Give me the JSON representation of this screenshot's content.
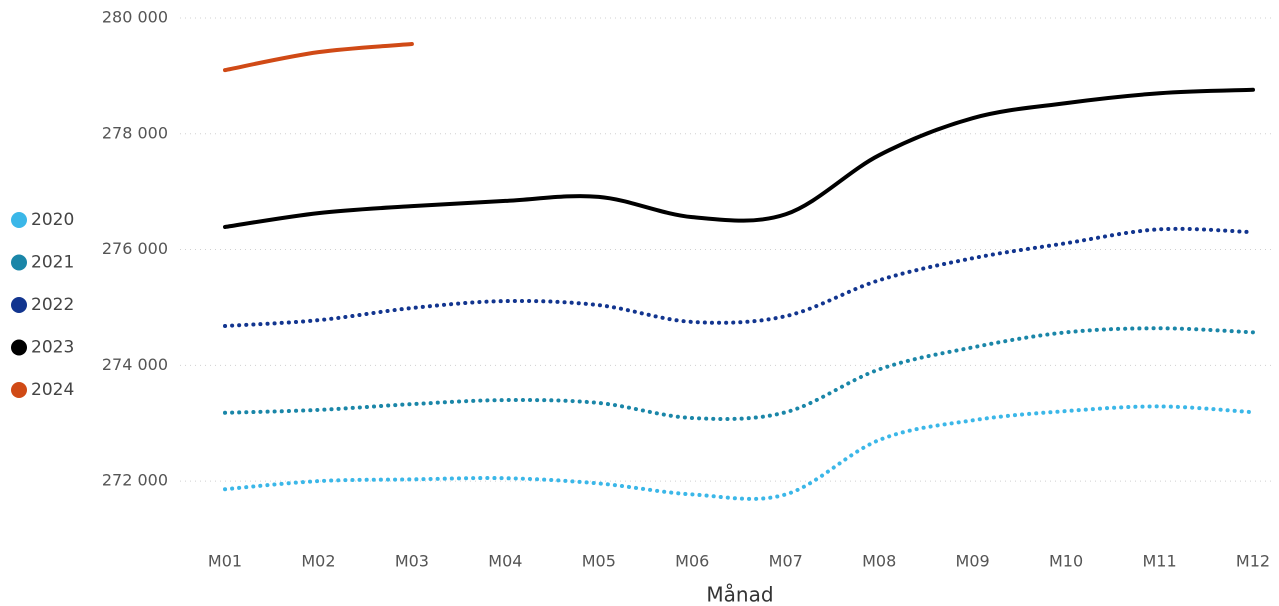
{
  "chart_data": {
    "type": "line",
    "x_label": "Månad",
    "categories": [
      "M01",
      "M02",
      "M03",
      "M04",
      "M05",
      "M06",
      "M07",
      "M08",
      "M09",
      "M10",
      "M11",
      "M12"
    ],
    "ylim": [
      271000,
      280000
    ],
    "yticks": [
      {
        "value": 272000,
        "label": "272 000"
      },
      {
        "value": 274000,
        "label": "274 000"
      },
      {
        "value": 276000,
        "label": "276 000"
      },
      {
        "value": 278000,
        "label": "278 000"
      },
      {
        "value": 280000,
        "label": "280 000"
      }
    ],
    "grid": true,
    "legend": "left",
    "series": [
      {
        "name": "2020",
        "color": "#3bb7e8",
        "dashed": true,
        "values": [
          271860,
          272000,
          272030,
          272050,
          271960,
          271770,
          271770,
          272710,
          273050,
          273210,
          273290,
          273190
        ]
      },
      {
        "name": "2021",
        "color": "#1a86a8",
        "dashed": true,
        "values": [
          273180,
          273230,
          273330,
          273400,
          273350,
          273090,
          273190,
          273930,
          274310,
          274570,
          274640,
          274570
        ]
      },
      {
        "name": "2022",
        "color": "#12358f",
        "dashed": true,
        "values": [
          274680,
          274780,
          274990,
          275110,
          275040,
          274750,
          274850,
          275470,
          275850,
          276110,
          276350,
          276300
        ]
      },
      {
        "name": "2023",
        "color": "#000000",
        "dashed": false,
        "values": [
          276390,
          276630,
          276750,
          276840,
          276910,
          276560,
          276610,
          277630,
          278270,
          278530,
          278700,
          278760
        ]
      },
      {
        "name": "2024",
        "color": "#d04a16",
        "dashed": false,
        "values": [
          279100,
          279410,
          279550,
          null,
          null,
          null,
          null,
          null,
          null,
          null,
          null,
          null
        ]
      }
    ]
  }
}
